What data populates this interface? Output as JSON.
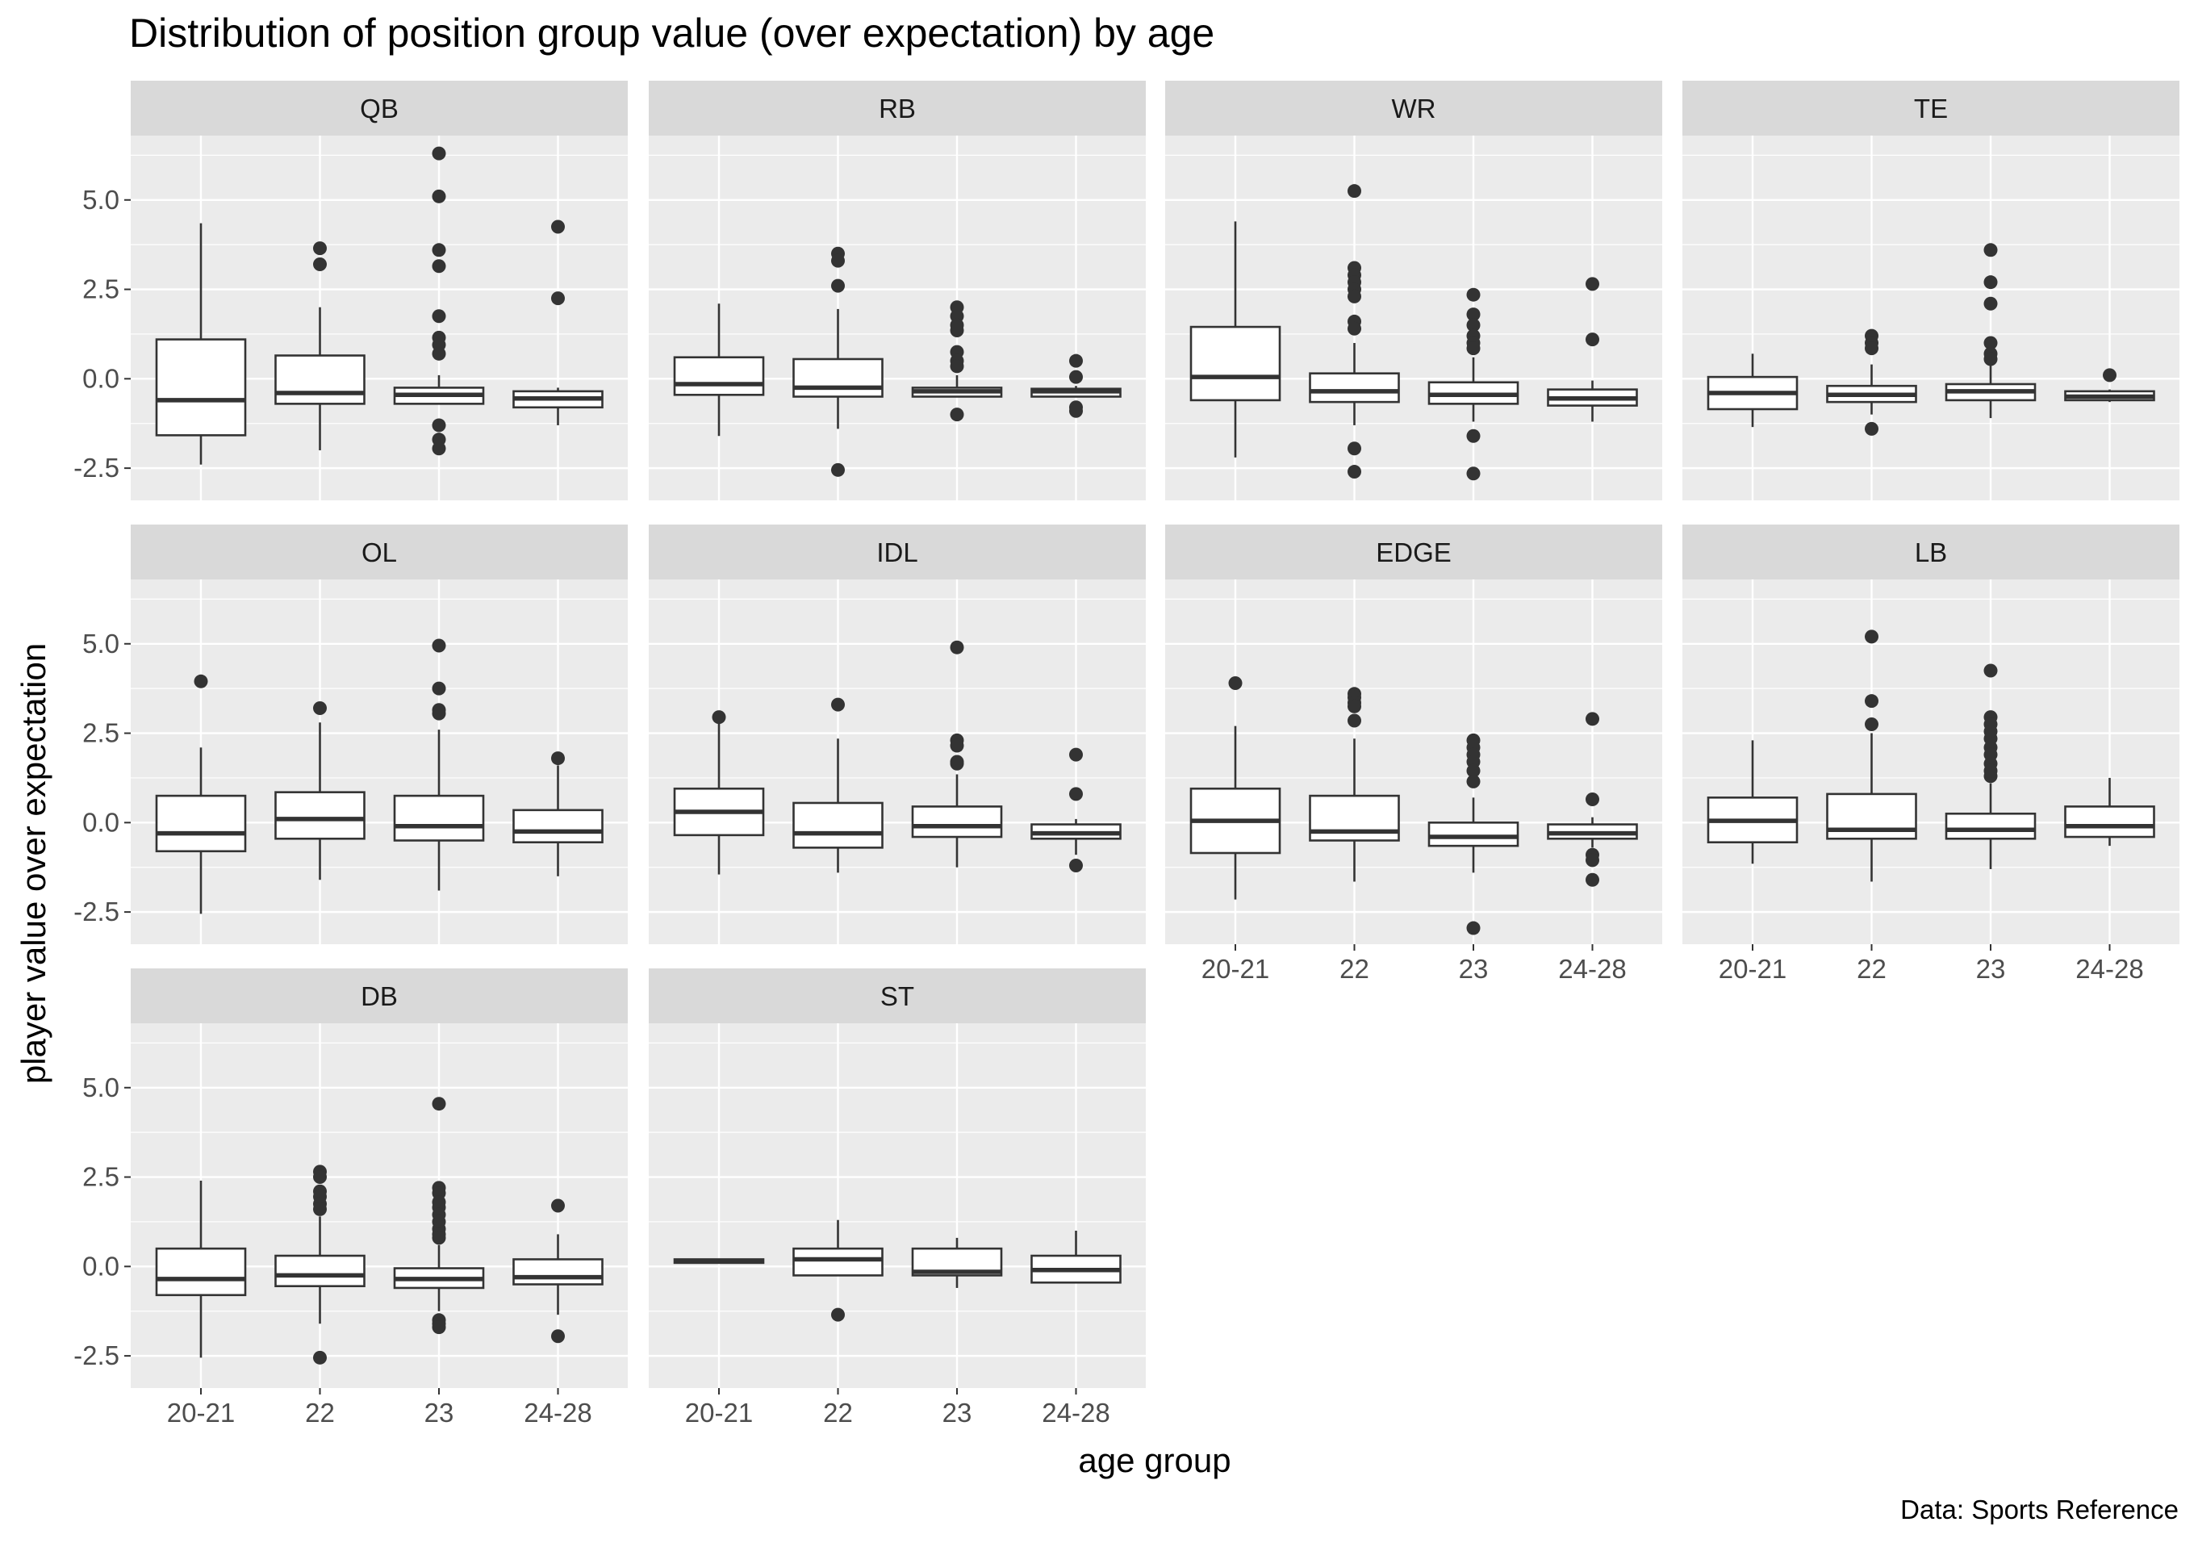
{
  "chart_data": {
    "type": "boxplot",
    "title": "Distribution of position group value (over expectation) by age",
    "xlabel": "age group",
    "ylabel": "player value over expectation",
    "caption": "Data: Sports Reference",
    "categories": [
      "20-21",
      "22",
      "23",
      "24-28"
    ],
    "ylim": [
      -3.4,
      6.8
    ],
    "yticks": [
      -2.5,
      0.0,
      2.5,
      5.0
    ],
    "ytick_labels": [
      "-2.5",
      "0.0",
      "2.5",
      "5.0"
    ],
    "grid": true,
    "panel_background": "#ebebeb",
    "strip_background": "#d9d9d9",
    "box_fill": "#ffffff",
    "line_color": "#333333",
    "panels": [
      {
        "name": "QB",
        "boxes": [
          {
            "group": "20-21",
            "lower_whisker": -2.4,
            "q1": -1.58,
            "median": -0.6,
            "q3": 1.1,
            "upper_whisker": 4.35,
            "outliers": []
          },
          {
            "group": "22",
            "lower_whisker": -2.0,
            "q1": -0.7,
            "median": -0.4,
            "q3": 0.65,
            "upper_whisker": 2.0,
            "outliers": [
              3.65,
              3.2
            ]
          },
          {
            "group": "23",
            "lower_whisker": -0.7,
            "q1": -0.7,
            "median": -0.45,
            "q3": -0.25,
            "upper_whisker": 0.1,
            "outliers": [
              6.3,
              5.1,
              3.6,
              3.15,
              1.75,
              1.15,
              0.95,
              0.7,
              -1.3,
              -1.7,
              -1.95
            ]
          },
          {
            "group": "24-28",
            "lower_whisker": -1.3,
            "q1": -0.8,
            "median": -0.55,
            "q3": -0.35,
            "upper_whisker": -0.25,
            "outliers": [
              4.25,
              2.25
            ]
          }
        ]
      },
      {
        "name": "RB",
        "boxes": [
          {
            "group": "20-21",
            "lower_whisker": -1.6,
            "q1": -0.45,
            "median": -0.15,
            "q3": 0.6,
            "upper_whisker": 2.1,
            "outliers": []
          },
          {
            "group": "22",
            "lower_whisker": -1.4,
            "q1": -0.5,
            "median": -0.25,
            "q3": 0.55,
            "upper_whisker": 1.95,
            "outliers": [
              3.5,
              3.3,
              2.6,
              -2.55
            ]
          },
          {
            "group": "23",
            "lower_whisker": -0.5,
            "q1": -0.5,
            "median": -0.35,
            "q3": -0.25,
            "upper_whisker": 0.1,
            "outliers": [
              2.0,
              1.75,
              1.5,
              1.35,
              0.75,
              0.5,
              0.35,
              -1.0
            ]
          },
          {
            "group": "24-28",
            "lower_whisker": -0.5,
            "q1": -0.5,
            "median": -0.35,
            "q3": -0.28,
            "upper_whisker": -0.2,
            "outliers": [
              0.5,
              0.05,
              -0.8,
              -0.9
            ]
          }
        ]
      },
      {
        "name": "WR",
        "boxes": [
          {
            "group": "20-21",
            "lower_whisker": -2.2,
            "q1": -0.6,
            "median": 0.05,
            "q3": 1.45,
            "upper_whisker": 4.4,
            "outliers": []
          },
          {
            "group": "22",
            "lower_whisker": -1.3,
            "q1": -0.65,
            "median": -0.35,
            "q3": 0.15,
            "upper_whisker": 1.0,
            "outliers": [
              5.25,
              3.1,
              2.9,
              2.7,
              2.5,
              2.3,
              1.6,
              1.4,
              -1.95,
              -2.6
            ]
          },
          {
            "group": "23",
            "lower_whisker": -1.2,
            "q1": -0.7,
            "median": -0.45,
            "q3": -0.1,
            "upper_whisker": 0.6,
            "outliers": [
              2.35,
              1.8,
              1.5,
              1.2,
              1.0,
              0.85,
              -1.6,
              -2.65
            ]
          },
          {
            "group": "24-28",
            "lower_whisker": -1.2,
            "q1": -0.75,
            "median": -0.55,
            "q3": -0.3,
            "upper_whisker": -0.05,
            "outliers": [
              2.65,
              1.1
            ]
          }
        ]
      },
      {
        "name": "TE",
        "boxes": [
          {
            "group": "20-21",
            "lower_whisker": -1.35,
            "q1": -0.85,
            "median": -0.4,
            "q3": 0.05,
            "upper_whisker": 0.7,
            "outliers": []
          },
          {
            "group": "22",
            "lower_whisker": -1.0,
            "q1": -0.65,
            "median": -0.45,
            "q3": -0.2,
            "upper_whisker": 0.4,
            "outliers": [
              1.2,
              1.0,
              0.85,
              -1.4
            ]
          },
          {
            "group": "23",
            "lower_whisker": -1.1,
            "q1": -0.6,
            "median": -0.35,
            "q3": -0.15,
            "upper_whisker": 0.4,
            "outliers": [
              3.6,
              2.7,
              2.1,
              1.0,
              0.7,
              0.55
            ]
          },
          {
            "group": "24-28",
            "lower_whisker": -0.65,
            "q1": -0.6,
            "median": -0.5,
            "q3": -0.35,
            "upper_whisker": -0.3,
            "outliers": [
              0.1
            ]
          }
        ]
      },
      {
        "name": "OL",
        "boxes": [
          {
            "group": "20-21",
            "lower_whisker": -2.55,
            "q1": -0.8,
            "median": -0.3,
            "q3": 0.75,
            "upper_whisker": 2.1,
            "outliers": [
              3.95
            ]
          },
          {
            "group": "22",
            "lower_whisker": -1.6,
            "q1": -0.45,
            "median": 0.1,
            "q3": 0.85,
            "upper_whisker": 2.8,
            "outliers": [
              3.2
            ]
          },
          {
            "group": "23",
            "lower_whisker": -1.9,
            "q1": -0.5,
            "median": -0.1,
            "q3": 0.75,
            "upper_whisker": 2.6,
            "outliers": [
              4.95,
              3.75,
              3.15,
              3.05
            ]
          },
          {
            "group": "24-28",
            "lower_whisker": -1.5,
            "q1": -0.55,
            "median": -0.25,
            "q3": 0.35,
            "upper_whisker": 1.6,
            "outliers": [
              1.8
            ]
          }
        ]
      },
      {
        "name": "IDL",
        "boxes": [
          {
            "group": "20-21",
            "lower_whisker": -1.45,
            "q1": -0.35,
            "median": 0.3,
            "q3": 0.95,
            "upper_whisker": 2.8,
            "outliers": [
              2.95
            ]
          },
          {
            "group": "22",
            "lower_whisker": -1.4,
            "q1": -0.7,
            "median": -0.3,
            "q3": 0.55,
            "upper_whisker": 2.35,
            "outliers": [
              3.3
            ]
          },
          {
            "group": "23",
            "lower_whisker": -1.25,
            "q1": -0.4,
            "median": -0.1,
            "q3": 0.45,
            "upper_whisker": 1.35,
            "outliers": [
              4.9,
              2.3,
              2.15,
              1.7,
              1.65
            ]
          },
          {
            "group": "24-28",
            "lower_whisker": -0.9,
            "q1": -0.45,
            "median": -0.3,
            "q3": -0.05,
            "upper_whisker": 0.1,
            "outliers": [
              1.9,
              0.8,
              -1.2
            ]
          }
        ]
      },
      {
        "name": "EDGE",
        "boxes": [
          {
            "group": "20-21",
            "lower_whisker": -2.15,
            "q1": -0.85,
            "median": 0.05,
            "q3": 0.95,
            "upper_whisker": 2.7,
            "outliers": [
              3.9
            ]
          },
          {
            "group": "22",
            "lower_whisker": -1.65,
            "q1": -0.5,
            "median": -0.25,
            "q3": 0.75,
            "upper_whisker": 2.35,
            "outliers": [
              3.6,
              3.5,
              3.35,
              3.25,
              2.85
            ]
          },
          {
            "group": "23",
            "lower_whisker": -1.4,
            "q1": -0.65,
            "median": -0.4,
            "q3": 0.0,
            "upper_whisker": 0.7,
            "outliers": [
              2.3,
              2.1,
              1.9,
              1.7,
              1.45,
              1.15,
              -2.95
            ]
          },
          {
            "group": "24-28",
            "lower_whisker": -0.7,
            "q1": -0.45,
            "median": -0.3,
            "q3": -0.05,
            "upper_whisker": 0.15,
            "outliers": [
              2.9,
              0.65,
              -0.9,
              -1.05,
              -1.6
            ]
          }
        ]
      },
      {
        "name": "LB",
        "boxes": [
          {
            "group": "20-21",
            "lower_whisker": -1.15,
            "q1": -0.55,
            "median": 0.05,
            "q3": 0.7,
            "upper_whisker": 2.3,
            "outliers": []
          },
          {
            "group": "22",
            "lower_whisker": -1.65,
            "q1": -0.45,
            "median": -0.2,
            "q3": 0.8,
            "upper_whisker": 2.5,
            "outliers": [
              5.2,
              3.4,
              2.75
            ]
          },
          {
            "group": "23",
            "lower_whisker": -1.3,
            "q1": -0.45,
            "median": -0.2,
            "q3": 0.25,
            "upper_whisker": 1.1,
            "outliers": [
              4.25,
              2.95,
              2.75,
              2.55,
              2.35,
              2.1,
              1.9,
              1.65,
              1.45,
              1.3
            ]
          },
          {
            "group": "24-28",
            "lower_whisker": -0.65,
            "q1": -0.4,
            "median": -0.1,
            "q3": 0.45,
            "upper_whisker": 1.25,
            "outliers": []
          }
        ]
      },
      {
        "name": "DB",
        "boxes": [
          {
            "group": "20-21",
            "lower_whisker": -2.55,
            "q1": -0.8,
            "median": -0.35,
            "q3": 0.5,
            "upper_whisker": 2.4,
            "outliers": []
          },
          {
            "group": "22",
            "lower_whisker": -1.6,
            "q1": -0.55,
            "median": -0.25,
            "q3": 0.3,
            "upper_whisker": 1.4,
            "outliers": [
              2.65,
              2.5,
              2.1,
              1.95,
              1.75,
              1.6,
              -2.55
            ]
          },
          {
            "group": "23",
            "lower_whisker": -1.25,
            "q1": -0.6,
            "median": -0.35,
            "q3": -0.05,
            "upper_whisker": 0.6,
            "outliers": [
              4.55,
              2.2,
              2.05,
              1.8,
              1.65,
              1.45,
              1.25,
              1.05,
              0.9,
              0.8,
              -1.5,
              -1.6,
              -1.7
            ]
          },
          {
            "group": "24-28",
            "lower_whisker": -1.35,
            "q1": -0.5,
            "median": -0.3,
            "q3": 0.2,
            "upper_whisker": 0.9,
            "outliers": [
              1.7,
              -1.95
            ]
          }
        ]
      },
      {
        "name": "ST",
        "boxes": [
          {
            "group": "20-21",
            "lower_whisker": 0.1,
            "q1": 0.1,
            "median": 0.15,
            "q3": 0.2,
            "upper_whisker": 0.2,
            "outliers": []
          },
          {
            "group": "22",
            "lower_whisker": -0.25,
            "q1": -0.25,
            "median": 0.2,
            "q3": 0.5,
            "upper_whisker": 1.3,
            "outliers": [
              -1.35
            ]
          },
          {
            "group": "23",
            "lower_whisker": -0.6,
            "q1": -0.25,
            "median": -0.15,
            "q3": 0.5,
            "upper_whisker": 0.8,
            "outliers": []
          },
          {
            "group": "24-28",
            "lower_whisker": -0.45,
            "q1": -0.45,
            "median": -0.1,
            "q3": 0.3,
            "upper_whisker": 1.0,
            "outliers": []
          }
        ]
      }
    ]
  }
}
